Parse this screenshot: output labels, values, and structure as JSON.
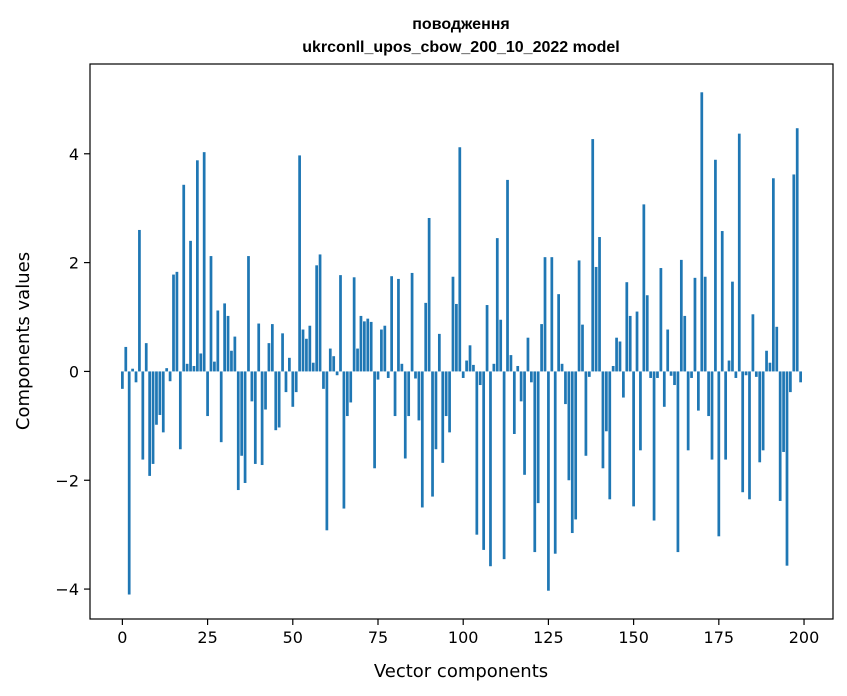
{
  "chart_data": {
    "type": "bar",
    "title": "поводження",
    "subtitle": "ukrconll_upos_cbow_200_10_2022 model",
    "xlabel": "Vector components",
    "ylabel": "Components values",
    "xlim": [
      -9.5,
      208.5
    ],
    "ylim": [
      -4.55,
      5.65
    ],
    "grid": false,
    "bar_color": "#1f77b4",
    "xticks": [
      {
        "value": 0,
        "label": "0"
      },
      {
        "value": 25,
        "label": "25"
      },
      {
        "value": 50,
        "label": "50"
      },
      {
        "value": 75,
        "label": "75"
      },
      {
        "value": 100,
        "label": "100"
      },
      {
        "value": 125,
        "label": "125"
      },
      {
        "value": 150,
        "label": "150"
      },
      {
        "value": 175,
        "label": "175"
      },
      {
        "value": 200,
        "label": "200"
      }
    ],
    "yticks": [
      {
        "value": -4,
        "label": "−4"
      },
      {
        "value": -2,
        "label": "−2"
      },
      {
        "value": 0,
        "label": "0"
      },
      {
        "value": 2,
        "label": "2"
      },
      {
        "value": 4,
        "label": "4"
      }
    ],
    "values": [
      -0.32,
      0.45,
      -4.1,
      0.05,
      -0.2,
      2.6,
      -1.62,
      0.52,
      -1.92,
      -1.7,
      -0.98,
      -0.8,
      -1.12,
      0.06,
      -0.18,
      1.78,
      1.83,
      -1.43,
      3.43,
      0.14,
      2.4,
      0.1,
      3.88,
      0.33,
      4.03,
      -0.82,
      2.12,
      0.18,
      1.12,
      -1.3,
      1.25,
      1.02,
      0.38,
      0.64,
      -2.18,
      -1.55,
      -2.05,
      2.12,
      -0.55,
      -1.7,
      0.88,
      -1.72,
      -0.7,
      0.52,
      0.87,
      -1.08,
      -1.03,
      0.7,
      -0.38,
      0.25,
      -0.65,
      -0.38,
      3.97,
      0.77,
      0.6,
      0.84,
      0.16,
      1.95,
      2.15,
      -0.32,
      -2.92,
      0.42,
      0.28,
      -0.07,
      1.77,
      -2.52,
      -0.82,
      -0.57,
      1.73,
      0.42,
      1.02,
      0.92,
      0.97,
      0.91,
      -1.78,
      -0.15,
      0.77,
      0.84,
      -0.12,
      1.75,
      -0.82,
      1.7,
      0.14,
      -1.6,
      -0.82,
      1.81,
      -0.13,
      -0.9,
      -2.5,
      1.26,
      2.82,
      -2.3,
      -1.43,
      0.69,
      -1.68,
      -0.82,
      -1.12,
      1.74,
      1.24,
      4.12,
      -0.12,
      0.2,
      0.48,
      0.12,
      -3.0,
      -0.25,
      -3.28,
      1.22,
      -3.58,
      0.14,
      2.45,
      0.95,
      -3.45,
      3.52,
      0.3,
      -1.15,
      0.1,
      -0.55,
      -1.9,
      0.62,
      -0.2,
      -3.32,
      -2.42,
      0.87,
      2.1,
      -4.03,
      2.1,
      -3.35,
      1.42,
      0.14,
      -0.6,
      -2.0,
      -2.97,
      -2.72,
      2.04,
      0.86,
      -1.55,
      -0.1,
      4.27,
      1.92,
      2.47,
      -1.78,
      -1.1,
      -2.35,
      0.1,
      0.62,
      0.55,
      -0.48,
      1.64,
      1.02,
      -2.48,
      1.1,
      -1.45,
      3.07,
      1.4,
      -0.12,
      -2.74,
      -0.12,
      1.9,
      -0.65,
      0.77,
      -0.08,
      -0.25,
      -3.32,
      2.05,
      1.02,
      -1.45,
      -0.12,
      1.72,
      -0.72,
      5.13,
      1.74,
      -0.82,
      -1.62,
      3.89,
      -3.03,
      2.58,
      -1.62,
      0.2,
      1.65,
      -0.12,
      4.37,
      -2.22,
      -0.07,
      -2.35,
      1.05,
      -0.1,
      -1.67,
      -1.45,
      0.38,
      0.16,
      3.55,
      0.82,
      -2.38,
      -1.48,
      -3.57,
      -0.38,
      3.62,
      4.47,
      -0.2
    ]
  }
}
